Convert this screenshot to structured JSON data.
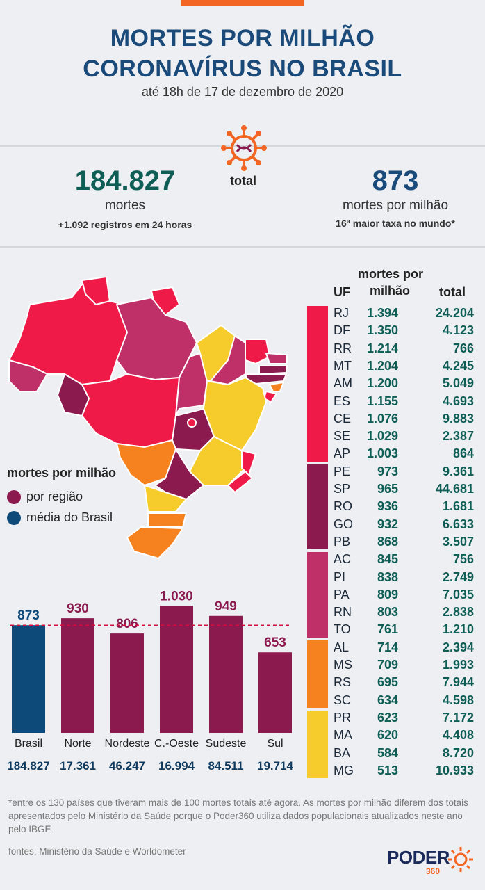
{
  "header": {
    "title_line1": "MORTES POR MILHÃO",
    "title_line2": "CORONAVÍRUS NO BRASIL",
    "subtitle": "até 18h de 17 de dezembro de 2020"
  },
  "summary": {
    "deaths_total": "184.827",
    "deaths_label": "mortes",
    "deaths_note": "+1.092 registros em 24 horas",
    "center_label": "total",
    "per_million": "873",
    "per_million_label": "mortes por milhão",
    "per_million_note": "16ª maior taxa no mundo*"
  },
  "legend": {
    "title": "mortes por milhão",
    "items": [
      {
        "label": "por região",
        "color": "#8b1a4f"
      },
      {
        "label": "média do Brasil",
        "color": "#0d4a7a"
      }
    ]
  },
  "colors": {
    "red": "#ef1a48",
    "wine": "#8b1a4f",
    "pink": "#bf3068",
    "orange": "#f6821f",
    "yellow": "#f5cc2b",
    "navy": "#0d4a7a",
    "teal": "#0f5e55"
  },
  "chart_data": {
    "type": "bar",
    "categories": [
      "Brasil",
      "Norte",
      "Nordeste",
      "C.-Oeste",
      "Sudeste",
      "Sul"
    ],
    "values": [
      873,
      930,
      806,
      1030,
      949,
      653
    ],
    "value_labels": [
      "873",
      "930",
      "806",
      "1.030",
      "949",
      "653"
    ],
    "totals": [
      "184.827",
      "17.361",
      "46.247",
      "16.994",
      "84.511",
      "19.714"
    ],
    "reference_line": 873,
    "bar_colors": [
      "#0d4a7a",
      "#8b1a4f",
      "#8b1a4f",
      "#8b1a4f",
      "#8b1a4f",
      "#8b1a4f"
    ],
    "ylim": [
      0,
      1100
    ]
  },
  "table": {
    "headers": {
      "uf": "UF",
      "mpm_line1": "mortes por",
      "mpm_line2": "milhão",
      "total": "total"
    },
    "rows": [
      {
        "uf": "RJ",
        "mpm": "1.394",
        "total": "24.204",
        "group": "red"
      },
      {
        "uf": "DF",
        "mpm": "1.350",
        "total": "4.123",
        "group": "red"
      },
      {
        "uf": "RR",
        "mpm": "1.214",
        "total": "766",
        "group": "red"
      },
      {
        "uf": "MT",
        "mpm": "1.204",
        "total": "4.245",
        "group": "red"
      },
      {
        "uf": "AM",
        "mpm": "1.200",
        "total": "5.049",
        "group": "red"
      },
      {
        "uf": "ES",
        "mpm": "1.155",
        "total": "4.693",
        "group": "red"
      },
      {
        "uf": "CE",
        "mpm": "1.076",
        "total": "9.883",
        "group": "red"
      },
      {
        "uf": "SE",
        "mpm": "1.029",
        "total": "2.387",
        "group": "red"
      },
      {
        "uf": "AP",
        "mpm": "1.003",
        "total": "864",
        "group": "red"
      },
      {
        "uf": "PE",
        "mpm": "973",
        "total": "9.361",
        "group": "wine"
      },
      {
        "uf": "SP",
        "mpm": "965",
        "total": "44.681",
        "group": "wine"
      },
      {
        "uf": "RO",
        "mpm": "936",
        "total": "1.681",
        "group": "wine"
      },
      {
        "uf": "GO",
        "mpm": "932",
        "total": "6.633",
        "group": "wine"
      },
      {
        "uf": "PB",
        "mpm": "868",
        "total": "3.507",
        "group": "wine"
      },
      {
        "uf": "AC",
        "mpm": "845",
        "total": "756",
        "group": "pink"
      },
      {
        "uf": "PI",
        "mpm": "838",
        "total": "2.749",
        "group": "pink"
      },
      {
        "uf": "PA",
        "mpm": "809",
        "total": "7.035",
        "group": "pink"
      },
      {
        "uf": "RN",
        "mpm": "803",
        "total": "2.838",
        "group": "pink"
      },
      {
        "uf": "TO",
        "mpm": "761",
        "total": "1.210",
        "group": "pink"
      },
      {
        "uf": "AL",
        "mpm": "714",
        "total": "2.394",
        "group": "orange"
      },
      {
        "uf": "MS",
        "mpm": "709",
        "total": "1.993",
        "group": "orange"
      },
      {
        "uf": "RS",
        "mpm": "695",
        "total": "7.944",
        "group": "orange"
      },
      {
        "uf": "SC",
        "mpm": "634",
        "total": "4.598",
        "group": "orange"
      },
      {
        "uf": "PR",
        "mpm": "623",
        "total": "7.172",
        "group": "yellow"
      },
      {
        "uf": "MA",
        "mpm": "620",
        "total": "4.408",
        "group": "yellow"
      },
      {
        "uf": "BA",
        "mpm": "584",
        "total": "8.720",
        "group": "yellow"
      },
      {
        "uf": "MG",
        "mpm": "513",
        "total": "10.933",
        "group": "yellow"
      }
    ]
  },
  "footer": {
    "note": "*entre os 130 países que tiveram mais de 100 mortes totais até agora. As mortes por milhão diferem dos totais apresentados pelo Ministério da Saúde porque o Poder360 utiliza dados populacionais atualizados neste ano pelo IBGE",
    "sources": "fontes: Ministério da Saúde e Worldometer",
    "logo_text": "PODER",
    "logo_sub": "360"
  }
}
